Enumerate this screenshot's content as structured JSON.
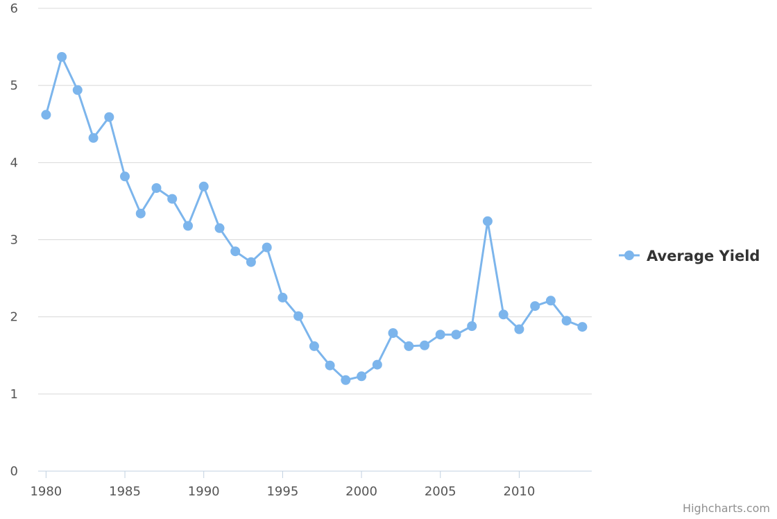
{
  "chart_data": {
    "type": "line",
    "title": "",
    "xlabel": "",
    "ylabel": "",
    "ylim": [
      0,
      6
    ],
    "xlim": [
      1979.5,
      2014.6
    ],
    "y_ticks": [
      0,
      1,
      2,
      3,
      4,
      5,
      6
    ],
    "x_ticks": [
      1980,
      1985,
      1990,
      1995,
      2000,
      2005,
      2010
    ],
    "grid": "horizontal",
    "legend_position": "right",
    "line_color": "#7cb5ec",
    "series": [
      {
        "name": "Average Yield",
        "x": [
          1980,
          1981,
          1982,
          1983,
          1984,
          1985,
          1986,
          1987,
          1988,
          1989,
          1990,
          1991,
          1992,
          1993,
          1994,
          1995,
          1996,
          1997,
          1998,
          1999,
          2000,
          2001,
          2002,
          2003,
          2004,
          2005,
          2006,
          2007,
          2008,
          2009,
          2010,
          2011,
          2012,
          2013,
          2014
        ],
        "values": [
          4.62,
          5.37,
          4.94,
          4.32,
          4.59,
          3.82,
          3.34,
          3.67,
          3.53,
          3.18,
          3.69,
          3.15,
          2.85,
          2.71,
          2.9,
          2.25,
          2.01,
          1.62,
          1.37,
          1.18,
          1.23,
          1.38,
          1.79,
          1.62,
          1.63,
          1.77,
          1.77,
          1.88,
          3.24,
          2.03,
          1.84,
          2.14,
          2.21,
          1.95,
          1.87
        ]
      }
    ]
  },
  "credit": "Highcharts.com"
}
